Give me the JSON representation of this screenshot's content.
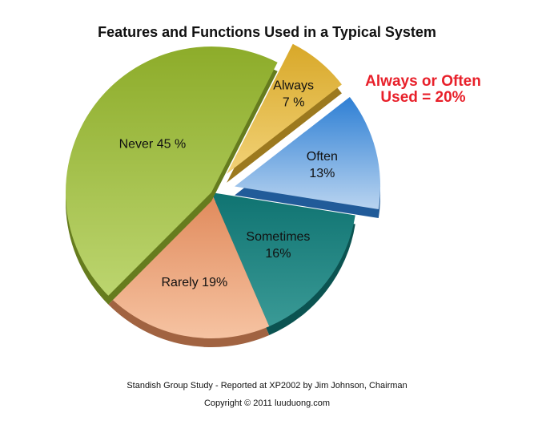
{
  "chart_data": {
    "type": "pie",
    "title": "Features and Functions Used in a Typical System",
    "callout": [
      "Always or Often",
      "Used = 20%"
    ],
    "slices": [
      {
        "name": "Always",
        "value": 7,
        "label_lines": [
          "Always",
          "7 %"
        ],
        "color": "#d8a829",
        "color_light": "#f2d277",
        "exploded": true
      },
      {
        "name": "Often",
        "value": 13,
        "label_lines": [
          "Often",
          "13%"
        ],
        "color": "#2e7fd4",
        "color_light": "#b9d4f0",
        "exploded": true
      },
      {
        "name": "Sometimes",
        "value": 16,
        "label_lines": [
          "Sometimes",
          "16%"
        ],
        "color": "#0f7371",
        "color_light": "#3a9a96",
        "exploded": false
      },
      {
        "name": "Rarely",
        "value": 19,
        "label_lines": [
          "Rarely 19%"
        ],
        "color": "#e0895a",
        "color_light": "#f6c3a2",
        "exploded": false
      },
      {
        "name": "Never",
        "value": 45,
        "label_lines": [
          "Never 45 %"
        ],
        "color": "#8dac2a",
        "color_light": "#bcd56f",
        "exploded": false
      }
    ],
    "footer": [
      "Standish Group Study - Reported at XP2002 by Jim Johnson, Chairman",
      "Copyright © 2011 luuduong.com"
    ]
  }
}
